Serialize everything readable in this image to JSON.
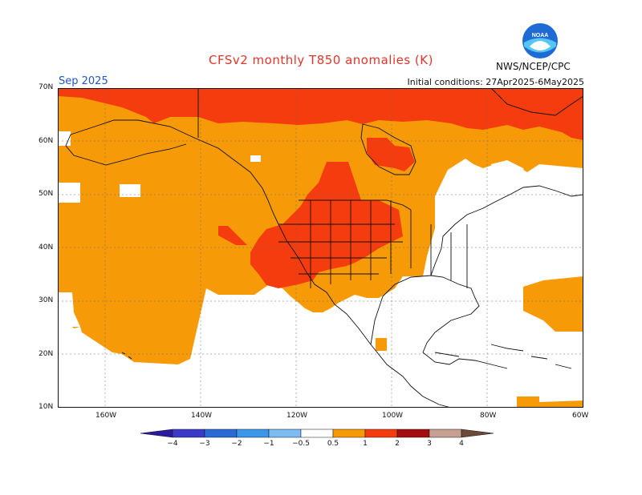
{
  "header": {
    "title": "CFSv2 monthly T850 anomalies (K)",
    "month": "Sep 2025",
    "init": "Initial conditions: 27Apr2025-6May2025",
    "agency": "NWS/NCEP/CPC"
  },
  "logo": {
    "text": "NOAA",
    "icon": "noaa-logo-icon"
  },
  "map": {
    "lat_labels": [
      "70N",
      "60N",
      "50N",
      "40N",
      "30N",
      "20N",
      "10N"
    ],
    "lon_labels": [
      "160W",
      "140W",
      "120W",
      "100W",
      "80W",
      "60W"
    ]
  },
  "colorbar": {
    "labels": [
      "-4",
      "-3",
      "-2",
      "-1",
      "-0.5",
      "0.5",
      "1",
      "2",
      "3",
      "4"
    ],
    "colors": [
      "#2a1aa0",
      "#3b39c8",
      "#2a6ad6",
      "#3a97ea",
      "#7cbcf2",
      "#ffffff",
      "#f79a08",
      "#f53c0f",
      "#a40e0f",
      "#c8a092",
      "#6e4838"
    ]
  },
  "colors": {
    "orange": "#f79a08",
    "red": "#f53c0f"
  }
}
